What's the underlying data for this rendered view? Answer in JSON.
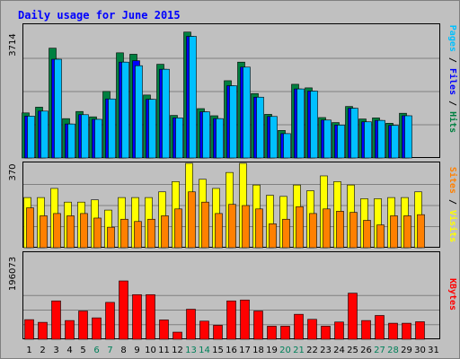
{
  "chart_data": {
    "type": "bar",
    "title": "Daily usage for June 2015",
    "days": [
      1,
      2,
      3,
      4,
      5,
      6,
      7,
      8,
      9,
      10,
      11,
      12,
      13,
      14,
      15,
      16,
      17,
      18,
      19,
      20,
      21,
      22,
      23,
      24,
      25,
      26,
      27,
      28,
      29,
      30,
      31
    ],
    "weekend_days": [
      6,
      7,
      13,
      14,
      20,
      21,
      27,
      28
    ],
    "panels": {
      "top": {
        "ymax_label": "3714",
        "ylim": [
          0,
          3714
        ],
        "right_label": {
          "parts": [
            "Pages",
            "Files",
            "Hits"
          ],
          "sep": " / "
        },
        "series": [
          {
            "name": "Hits",
            "color": "#008040",
            "values": [
              1260,
              1420,
              3070,
              1100,
              1300,
              1150,
              1860,
              2940,
              2900,
              1760,
              2620,
              1190,
              3520,
              1380,
              1180,
              2160,
              2680,
              1800,
              1220,
              770,
              2060,
              1960,
              1130,
              990,
              1440,
              1090,
              1120,
              970,
              1250,
              null,
              null
            ]
          },
          {
            "name": "Files",
            "color": "#0000ff",
            "values": [
              1170,
              1310,
              2760,
              950,
              1210,
              1080,
              1650,
              2680,
              2720,
              1640,
              2480,
              1120,
              3400,
              1290,
              1100,
              2020,
              2540,
              1700,
              1160,
              680,
              1930,
              1870,
              1060,
              920,
              1390,
              1010,
              1050,
              910,
              1180,
              null,
              null
            ]
          },
          {
            "name": "Pages",
            "color": "#00c0ff",
            "values": [
              1170,
              1310,
              2760,
              950,
              1210,
              1080,
              1650,
              2680,
              2580,
              1640,
              2480,
              1120,
              3400,
              1290,
              1100,
              2020,
              2540,
              1700,
              1160,
              680,
              1930,
              1870,
              1060,
              920,
              1390,
              1010,
              1050,
              910,
              1180,
              null,
              null
            ]
          }
        ]
      },
      "middle": {
        "ymax_label": "370",
        "ylim": [
          0,
          370
        ],
        "right_label": {
          "parts": [
            "Sites",
            "Visits"
          ],
          "sep": " / "
        },
        "series": [
          {
            "name": "Visits",
            "color": "#ffff00",
            "values": [
              220,
              220,
              260,
              200,
              200,
              210,
              165,
              220,
              220,
              220,
              245,
              290,
              370,
              300,
              260,
              330,
              370,
              275,
              230,
              225,
              275,
              250,
              315,
              290,
              275,
              215,
              215,
              220,
              220,
              245,
              null
            ]
          },
          {
            "name": "Sites",
            "color": "#ff8000",
            "values": [
              175,
              140,
              150,
              140,
              150,
              130,
              90,
              125,
              115,
              125,
              140,
              170,
              245,
              200,
              150,
              190,
              185,
              170,
              105,
              125,
              180,
              150,
              170,
              160,
              155,
              120,
              100,
              140,
              140,
              145,
              null
            ]
          }
        ]
      },
      "bottom": {
        "ymax_label": "196073",
        "ylim": [
          0,
          196073
        ],
        "right_label": {
          "parts": [
            "KBytes"
          ],
          "sep": ""
        },
        "series": [
          {
            "name": "KBytes",
            "color": "#ff0000",
            "values": [
              66000,
              57000,
              129000,
              63000,
              95000,
              72000,
              124000,
              196073,
              150000,
              150000,
              65000,
              24000,
              101000,
              61000,
              47000,
              129000,
              132000,
              95000,
              44000,
              44000,
              84000,
              67000,
              44000,
              58000,
              155000,
              63000,
              80000,
              54000,
              54000,
              59000,
              null
            ]
          }
        ]
      }
    }
  }
}
